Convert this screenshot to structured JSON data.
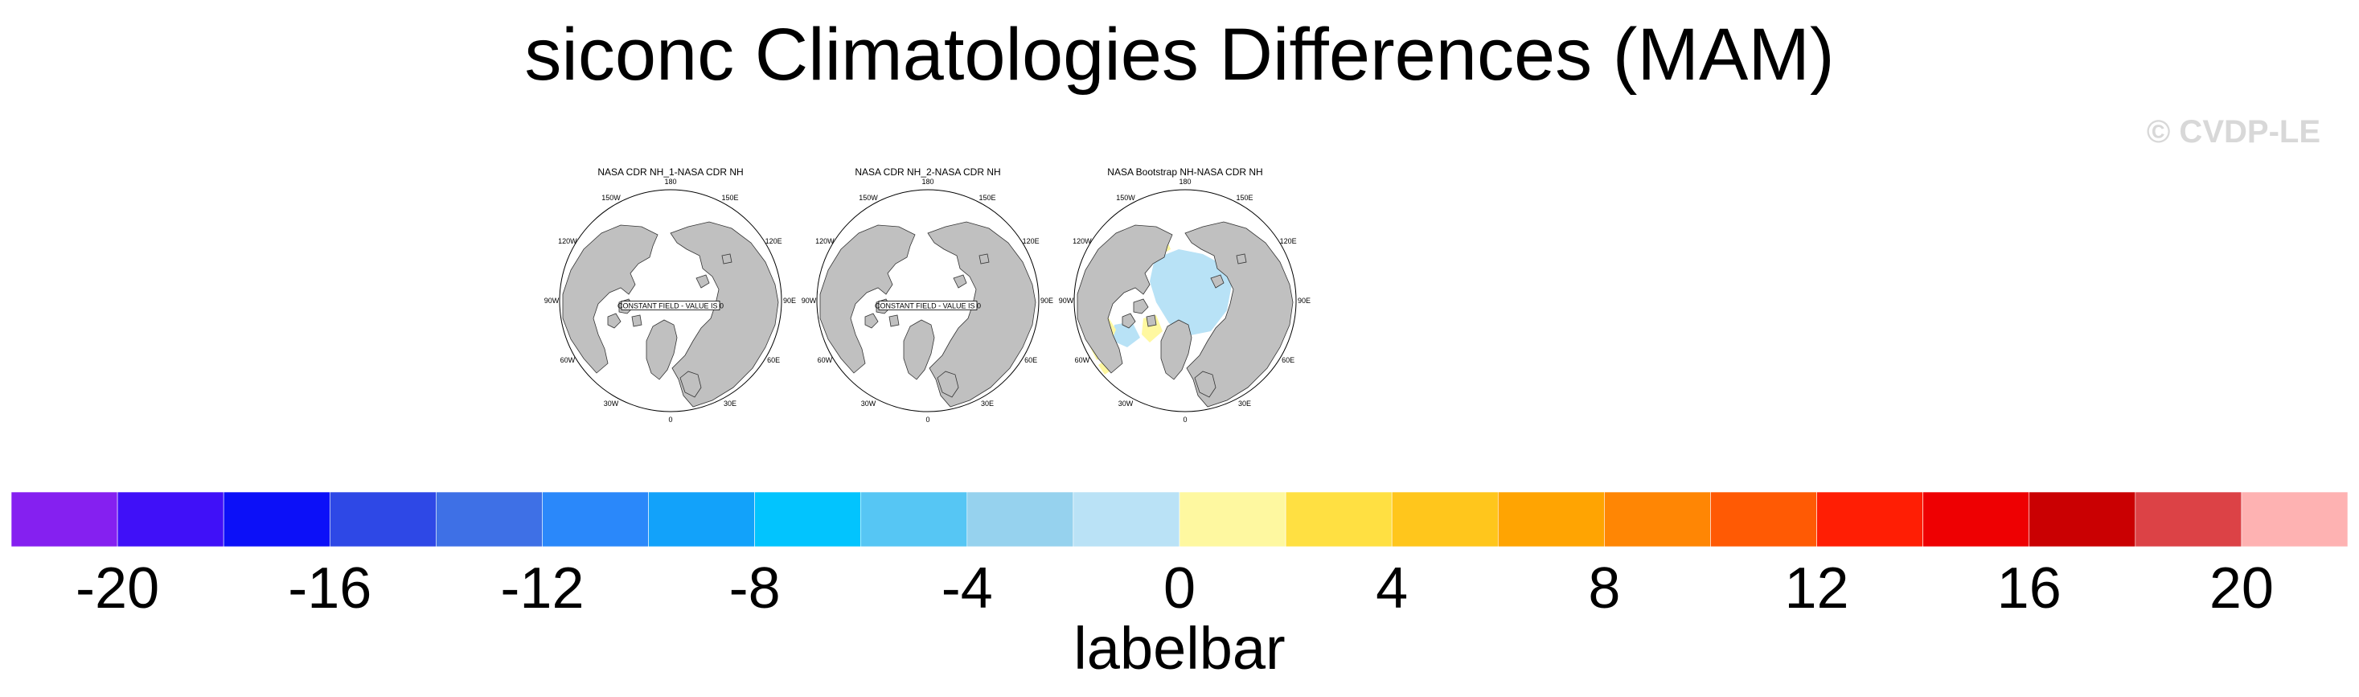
{
  "title": "siconc Climatologies Differences (MAM)",
  "watermark": "© CVDP-LE",
  "panels": [
    {
      "title": "NASA CDR NH_1-NASA CDR NH",
      "annotation": "CONSTANT FIELD - VALUE IS 0",
      "has_anomaly_shading": false
    },
    {
      "title": "NASA CDR NH_2-NASA CDR NH",
      "annotation": "CONSTANT FIELD - VALUE IS 0",
      "has_anomaly_shading": false
    },
    {
      "title": "NASA Bootstrap NH-NASA CDR NH",
      "annotation": "",
      "has_anomaly_shading": true
    }
  ],
  "map_labels": {
    "top": "180",
    "bottom": "0",
    "left": "90W",
    "right": "90E",
    "upper_left": "150W",
    "upper_right": "150E",
    "upper_left_2": "120W",
    "upper_right_2": "120E",
    "lower_left_2": "60W",
    "lower_right_2": "60E",
    "lower_left": "30W",
    "lower_right": "30E"
  },
  "colors": {
    "land": "#c0c0c0",
    "ocean": "#ffffff",
    "outline": "#333333",
    "anomaly_negative": "#b8e2f6",
    "anomaly_positive": "#fff8a0",
    "watermark": "#d8d8d8"
  },
  "labelbar": {
    "title": "labelbar",
    "ticks": [
      "-20",
      "-16",
      "-12",
      "-8",
      "-4",
      "0",
      "4",
      "8",
      "12",
      "16",
      "20"
    ],
    "boxes": [
      "#8520f0",
      "#4010f8",
      "#0c10f8",
      "#2e48e6",
      "#3e70e6",
      "#2a88fa",
      "#12a2fa",
      "#02c4fe",
      "#56c6f4",
      "#96d2ee",
      "#bae2f6",
      "#fef8a0",
      "#ffe042",
      "#ffc61c",
      "#ffa402",
      "#ff8604",
      "#ff5a04",
      "#ff1e04",
      "#ee0002",
      "#ca0002",
      "#dc4246",
      "#feb2b2"
    ]
  }
}
